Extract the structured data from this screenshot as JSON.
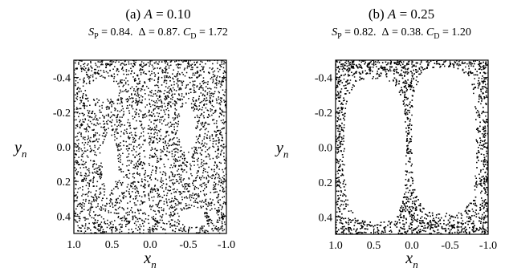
{
  "chart_data": [
    {
      "type": "scatter",
      "title_prefix": "(a)",
      "title_var": "A",
      "title_value": "= 0.10",
      "stats": {
        "s_symbol": "S",
        "s_sub": "P",
        "s_value": "= 0.84.",
        "delta_symbol": "Δ",
        "delta_value": "= 0.87.",
        "cd_symbol": "C",
        "cd_sub": "D",
        "cd_value": "= 1.72"
      },
      "xlabel": "x",
      "xlabel_sub": "n",
      "ylabel": "y",
      "ylabel_sub": "n",
      "xlim": [
        1.0,
        -1.0
      ],
      "ylim": [
        -0.5,
        0.5
      ],
      "x_reversed": true,
      "y_reversed": true,
      "x_ticks": [
        1.0,
        0.5,
        0.0,
        -0.5,
        -1.0
      ],
      "x_tick_labels": [
        "1.0",
        "0.5",
        "0.0",
        "-0.5",
        "-1.0"
      ],
      "y_ticks": [
        -0.4,
        -0.2,
        0.0,
        0.2,
        0.4
      ],
      "y_tick_labels": [
        "-0.4",
        "-0.2",
        "0.0",
        "0.2",
        "0.4"
      ],
      "point_color": "#000000",
      "point_count": 3200,
      "holes": [
        {
          "cx": 0.61,
          "cy": -0.33,
          "rx": 0.21,
          "ry": 0.055
        },
        {
          "cx": 0.53,
          "cy": 0.09,
          "rx": 0.1,
          "ry": 0.16
        },
        {
          "cx": -0.48,
          "cy": -0.11,
          "rx": 0.11,
          "ry": 0.14
        },
        {
          "cx": -0.55,
          "cy": 0.41,
          "rx": 0.17,
          "ry": 0.05
        }
      ],
      "gaps": [
        {
          "cx": 0.04,
          "cy": 0.0,
          "rx": 0.02,
          "ry": 0.5
        },
        {
          "cx": 0.33,
          "cy": -0.05,
          "rx": 0.015,
          "ry": 0.38
        }
      ]
    },
    {
      "type": "scatter",
      "title_prefix": "(b)",
      "title_var": "A",
      "title_value": "= 0.25",
      "stats": {
        "s_symbol": "S",
        "s_sub": "P",
        "s_value": "= 0.82.",
        "delta_symbol": "Δ",
        "delta_value": "= 0.38.",
        "cd_symbol": "C",
        "cd_sub": "D",
        "cd_value": "= 1.20"
      },
      "xlabel": "x",
      "xlabel_sub": "n",
      "ylabel": "y",
      "ylabel_sub": "n",
      "xlim": [
        1.0,
        -1.0
      ],
      "ylim": [
        -0.5,
        0.5
      ],
      "x_reversed": true,
      "y_reversed": true,
      "x_ticks": [
        1.0,
        0.5,
        0.0,
        -0.5,
        -1.0
      ],
      "x_tick_labels": [
        "1.0",
        "0.5",
        "0.0",
        "-0.5",
        "-1.0"
      ],
      "y_ticks": [
        -0.4,
        -0.2,
        0.0,
        0.2,
        0.4
      ],
      "y_tick_labels": [
        "-0.4",
        "-0.2",
        "0.0",
        "0.2",
        "0.4"
      ],
      "point_color": "#000000",
      "point_count": 3200,
      "holes": [
        {
          "cx": 0.48,
          "cy": 0.02,
          "rx": 0.4,
          "ry": 0.41
        },
        {
          "cx": -0.42,
          "cy": -0.04,
          "rx": 0.42,
          "ry": 0.42
        }
      ],
      "gaps": []
    }
  ]
}
